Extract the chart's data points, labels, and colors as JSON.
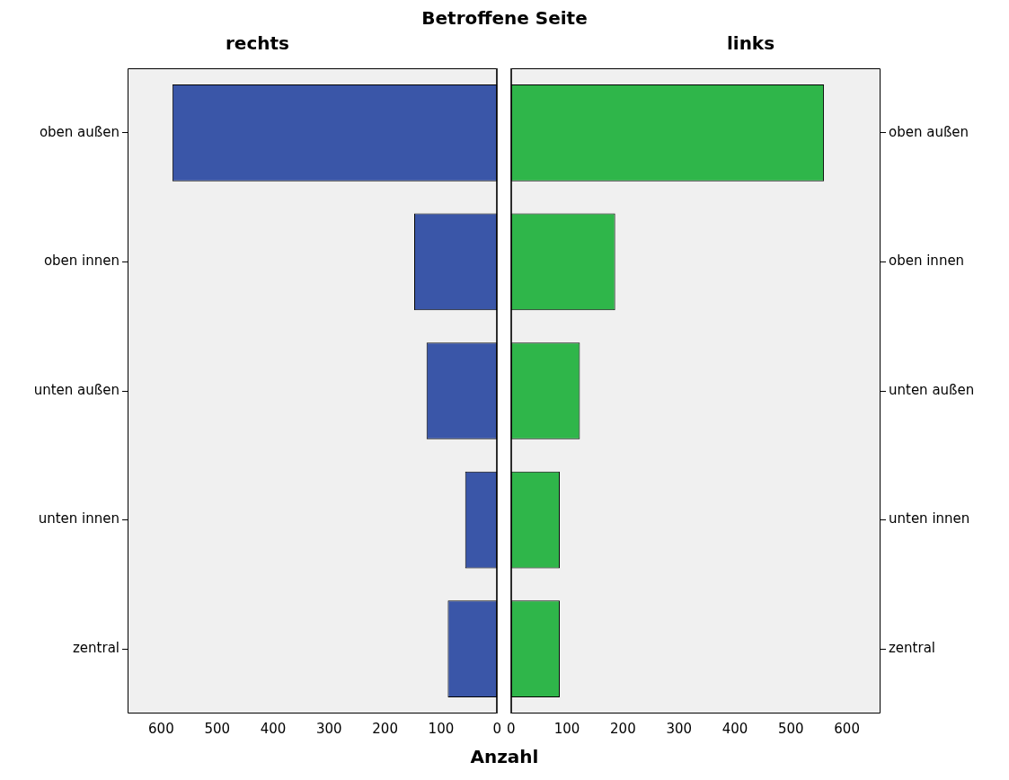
{
  "chart_data": [
    {
      "type": "bar",
      "orientation": "horizontal",
      "title": "rechts",
      "annotations": [
        "Betroffene Seite"
      ],
      "xlabel": "Anzahl",
      "categories": [
        "oben außen",
        "oben innen",
        "unten außen",
        "unten innen",
        "zentral"
      ],
      "values": [
        580,
        148,
        126,
        57,
        88
      ],
      "color": "#3a56a8",
      "xlim": [
        660,
        0
      ],
      "xticks": [
        600,
        500,
        400,
        300,
        200,
        100,
        0
      ],
      "grid": false
    },
    {
      "type": "bar",
      "orientation": "horizontal",
      "title": "links",
      "categories": [
        "oben außen",
        "oben innen",
        "unten außen",
        "unten innen",
        "zentral"
      ],
      "values": [
        559,
        186,
        123,
        87,
        87
      ],
      "color": "#2fb64a",
      "xlim": [
        0,
        660
      ],
      "xticks": [
        0,
        100,
        200,
        300,
        400,
        500,
        600
      ],
      "grid": false
    }
  ]
}
